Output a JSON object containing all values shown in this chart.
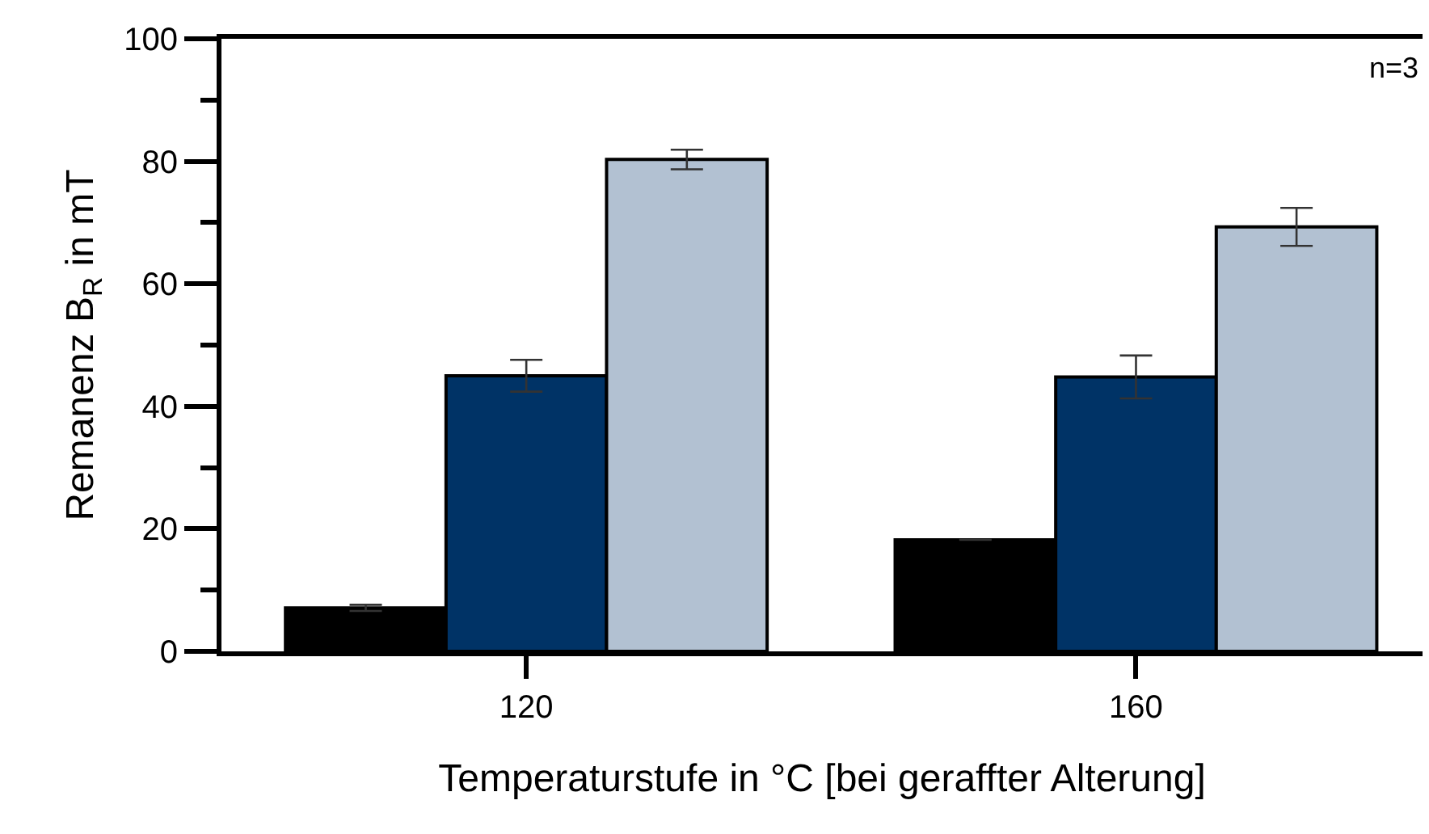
{
  "chart_data": {
    "type": "bar",
    "xlabel": "Temperaturstufe in °C [bei geraffter Alterung]",
    "ylabel": "Remanenz B$_{R}$ in mT",
    "categories": [
      "120",
      "160"
    ],
    "series": [
      {
        "color": "#000000",
        "values": [
          7.1,
          18.2
        ],
        "errors": [
          0.5,
          null
        ]
      },
      {
        "color": "#003366",
        "values": [
          45.0,
          44.8
        ],
        "errors": [
          2.6,
          3.5
        ]
      },
      {
        "color": "#b2c1d2",
        "values": [
          80.3,
          69.3
        ],
        "errors": [
          1.6,
          3.1
        ]
      }
    ],
    "ylim": [
      0,
      100
    ],
    "yticks": [
      0,
      20,
      40,
      60,
      80,
      100
    ],
    "annotations": [
      "n=3"
    ]
  }
}
